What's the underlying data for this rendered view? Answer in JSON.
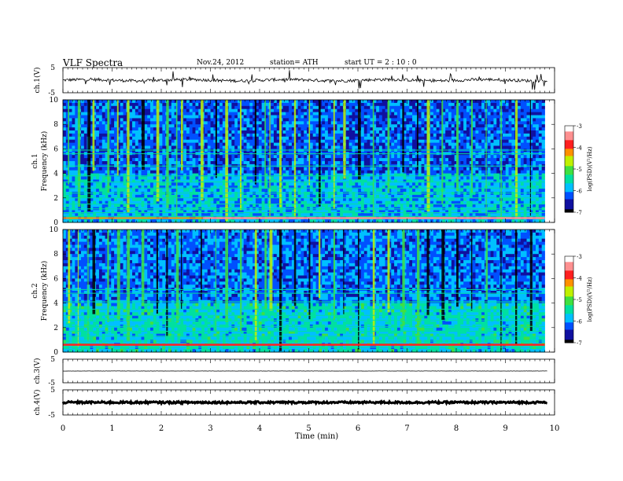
{
  "header": {
    "title": "VLF  Spectra",
    "date": "Nov.24, 2012",
    "station": "station= ATH",
    "start": "start  UT  =   2 : 10 : 0"
  },
  "colorbar": {
    "label": "log(PSD)(V²/Hz)",
    "ticks": [
      "-3",
      "-4",
      "-5",
      "-6",
      "-7"
    ],
    "range": [
      -7,
      -3
    ],
    "colors": [
      "#000000",
      "#1010a0",
      "#0050ff",
      "#00c0ff",
      "#00e0a0",
      "#40e040",
      "#c0f000",
      "#ff9000",
      "#ff2020",
      "#ff9090",
      "#ffffff"
    ]
  },
  "chart_data": [
    {
      "type": "line",
      "name": "ch.1(V)",
      "ylabel": "ch.1(V)",
      "ylim": [
        -5,
        5
      ],
      "yticks": [
        "5",
        "-5"
      ],
      "xlim": [
        0,
        10
      ],
      "mean_level": 0,
      "noise_amplitude": 0.6,
      "spike_amplitude": 3.5
    },
    {
      "type": "heatmap",
      "name": "ch.1 spectrogram",
      "ylabel": "ch.1 Frequency  (kHz)",
      "ylim": [
        0,
        10
      ],
      "yticks": [
        "0",
        "2",
        "4",
        "6",
        "8",
        "10"
      ],
      "xlim": [
        0,
        9.8
      ],
      "description_values": {
        "low_band_logpsd": -5.8,
        "high_band_logpsd": -6.2,
        "strong_line_khz": 0.35,
        "strong_line_logpsd": -3.6,
        "strong_line_start_min": 2.85,
        "horizontal_lines_khz": [
          0.5,
          0.8,
          1.1,
          1.5,
          2.0,
          2.4,
          2.8,
          3.3,
          3.8,
          4.6,
          5.6,
          5.9
        ],
        "vertical_bursts_min": [
          0.1,
          0.3,
          0.5,
          0.6,
          0.9,
          1.1,
          1.3,
          1.6,
          1.9,
          2.1,
          2.3,
          2.4,
          2.8,
          3.1,
          3.3,
          3.6,
          3.9,
          4.1,
          4.2,
          4.4,
          4.7,
          5.0,
          5.2,
          5.5,
          5.7,
          6.0,
          6.3,
          6.6,
          6.9,
          7.2,
          7.4,
          7.7,
          8.0,
          8.3,
          8.6,
          8.9,
          9.2,
          9.5
        ]
      }
    },
    {
      "type": "heatmap",
      "name": "ch.2 spectrogram",
      "ylabel": "ch.2 Frequency  (kHz)",
      "ylim": [
        0,
        10
      ],
      "yticks": [
        "0",
        "2",
        "4",
        "6",
        "8",
        "10"
      ],
      "xlim": [
        0,
        9.8
      ],
      "description_values": {
        "low_band_logpsd": -5.6,
        "high_band_logpsd": -6.1,
        "strong_line_khz": 0.6,
        "strong_line_logpsd": -4.0,
        "horizontal_lines_khz": [
          0.4,
          0.9,
          1.3,
          1.7,
          2.1,
          2.6,
          3.0,
          3.5,
          4.1,
          4.8,
          5.1
        ],
        "vertical_bursts_min": [
          0.1,
          0.3,
          0.5,
          0.6,
          0.9,
          1.1,
          1.3,
          1.6,
          1.9,
          2.1,
          2.3,
          2.4,
          2.8,
          3.1,
          3.3,
          3.6,
          3.9,
          4.1,
          4.2,
          4.4,
          4.7,
          5.0,
          5.2,
          5.5,
          5.7,
          6.0,
          6.3,
          6.6,
          6.9,
          7.2,
          7.4,
          7.7,
          8.0,
          8.3,
          8.6,
          8.9,
          9.2,
          9.5
        ]
      }
    },
    {
      "type": "line",
      "name": "ch.3(V)",
      "ylabel": "ch.3(V)",
      "ylim": [
        -5,
        5
      ],
      "yticks": [
        "5",
        "-5"
      ],
      "xlim": [
        0,
        9.8
      ],
      "mean_level": 0,
      "noise_amplitude": 0.05
    },
    {
      "type": "line",
      "name": "ch.4(V)",
      "ylabel": "ch.4(V)",
      "ylim": [
        -5,
        5
      ],
      "yticks": [
        "5",
        "-5"
      ],
      "xlim": [
        0,
        9.8
      ],
      "mean_level": 0,
      "noise_amplitude": 0.4
    }
  ],
  "xaxis": {
    "label": "Time  (min)",
    "ticks": [
      "0",
      "1",
      "2",
      "3",
      "4",
      "5",
      "6",
      "7",
      "8",
      "9",
      "10"
    ],
    "range": [
      0,
      10
    ]
  }
}
